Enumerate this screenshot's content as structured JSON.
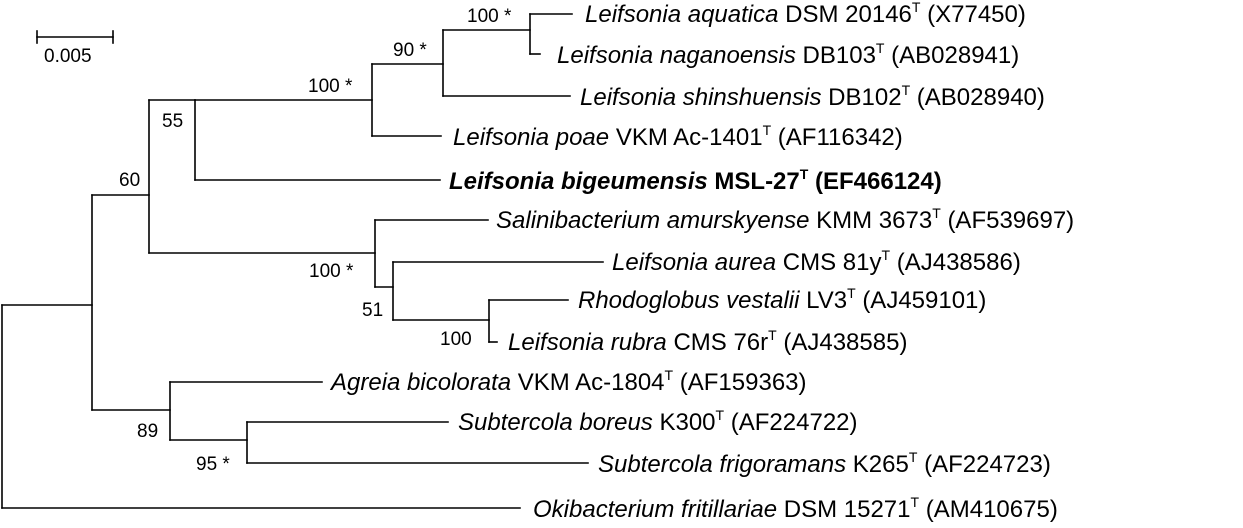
{
  "scale": {
    "label": "0.005"
  },
  "taxa": [
    {
      "id": "aquatica",
      "species": "Leifsonia aquatica",
      "strain": "DSM 20146",
      "type": "T",
      "accession": "(X77450)",
      "bold": false
    },
    {
      "id": "naganoensis",
      "species": "Leifsonia naganoensis",
      "strain": "DB103",
      "type": "T",
      "accession": "(AB028941)",
      "bold": false
    },
    {
      "id": "shinshuensis",
      "species": "Leifsonia shinshuensis",
      "strain": "DB102",
      "type": "T",
      "accession": "(AB028940)",
      "bold": false
    },
    {
      "id": "poae",
      "species": "Leifsonia poae",
      "strain": "VKM Ac-1401",
      "type": "T",
      "accession": "(AF116342)",
      "bold": false
    },
    {
      "id": "bigeumensis",
      "species": "Leifsonia bigeumensis",
      "strain": "MSL-27",
      "type": "T",
      "accession": "(EF466124)",
      "bold": true
    },
    {
      "id": "amurskyense",
      "species": "Salinibacterium amurskyense",
      "strain": "KMM 3673",
      "type": "T",
      "accession": "(AF539697)",
      "bold": false
    },
    {
      "id": "aurea",
      "species": "Leifsonia aurea",
      "strain": "CMS 81y",
      "type": "T",
      "accession": "(AJ438586)",
      "bold": false
    },
    {
      "id": "vestalii",
      "species": "Rhodoglobus vestalii",
      "strain": "LV3",
      "type": "T",
      "accession": "(AJ459101)",
      "bold": false
    },
    {
      "id": "rubra",
      "species": "Leifsonia rubra",
      "strain": "CMS 76r",
      "type": "T",
      "accession": "(AJ438585)",
      "bold": false
    },
    {
      "id": "bicolorata",
      "species": "Agreia bicolorata",
      "strain": "VKM Ac-1804",
      "type": "T",
      "accession": "(AF159363)",
      "bold": false
    },
    {
      "id": "boreus",
      "species": "Subtercola boreus",
      "strain": "K300",
      "type": "T",
      "accession": "(AF224722)",
      "bold": false
    },
    {
      "id": "frigoramans",
      "species": "Subtercola frigoramans",
      "strain": "K265",
      "type": "T",
      "accession": "(AF224723)",
      "bold": false
    },
    {
      "id": "fritillariae",
      "species": "Okibacterium fritillariae",
      "strain": "DSM 15271",
      "type": "T",
      "accession": "(AM410675)",
      "bold": false
    }
  ],
  "bootstrap": [
    {
      "id": "aquatica-naganoensis",
      "value": "100 *"
    },
    {
      "id": "aquatica-shinshuensis",
      "value": "90 *"
    },
    {
      "id": "aquatica-poae",
      "value": "100 *"
    },
    {
      "id": "leifsonia-core",
      "value": "55"
    },
    {
      "id": "main-clade",
      "value": "60"
    },
    {
      "id": "amurskyense-clade",
      "value": "100 *"
    },
    {
      "id": "aurea-clade",
      "value": "51"
    },
    {
      "id": "vestalii-rubra",
      "value": "100"
    },
    {
      "id": "agreia-subtercola",
      "value": "89"
    },
    {
      "id": "subtercola",
      "value": "95 *"
    }
  ]
}
